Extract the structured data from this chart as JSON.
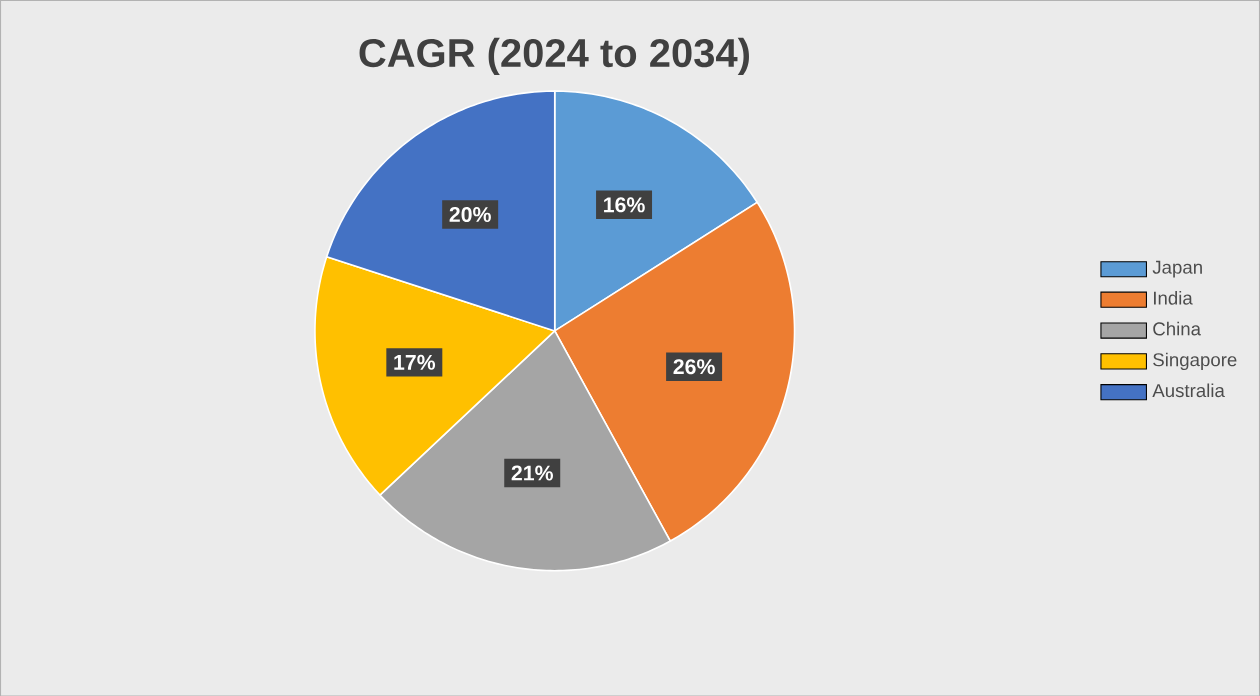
{
  "chart_data": {
    "type": "pie",
    "title": "CAGR (2024 to 2034)",
    "categories": [
      "Japan",
      "India",
      "China",
      "Singapore",
      "Australia"
    ],
    "values": [
      16,
      26,
      21,
      17,
      20
    ],
    "value_labels": [
      "16%",
      "26%",
      "21%",
      "17%",
      "20%"
    ],
    "colors": [
      "#5b9bd5",
      "#ed7d31",
      "#a5a5a5",
      "#ffc000",
      "#4472c4"
    ],
    "legend": "right"
  }
}
